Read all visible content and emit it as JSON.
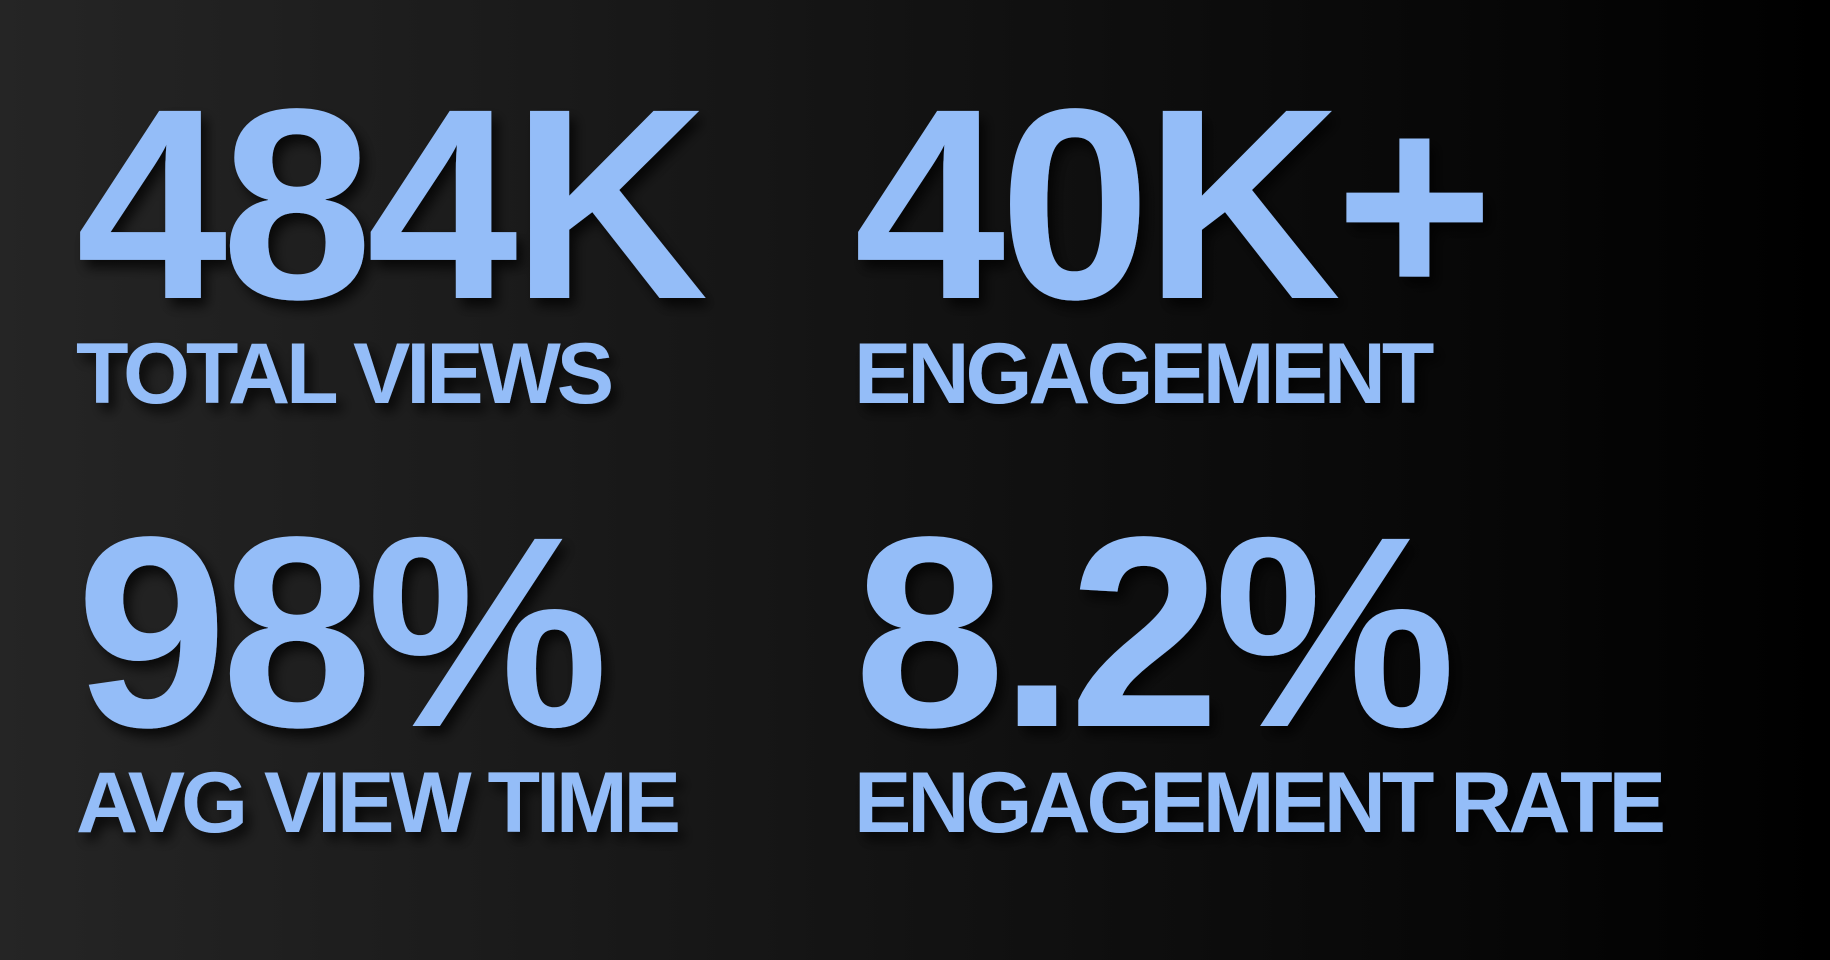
{
  "stats": [
    {
      "value": "484K",
      "label": "TOTAL VIEWS"
    },
    {
      "value": "40K+",
      "label": "ENGAGEMENT"
    },
    {
      "value": "98%",
      "label": "AVG VIEW TIME"
    },
    {
      "value": "8.2%",
      "label": "ENGAGEMENT RATE"
    }
  ]
}
